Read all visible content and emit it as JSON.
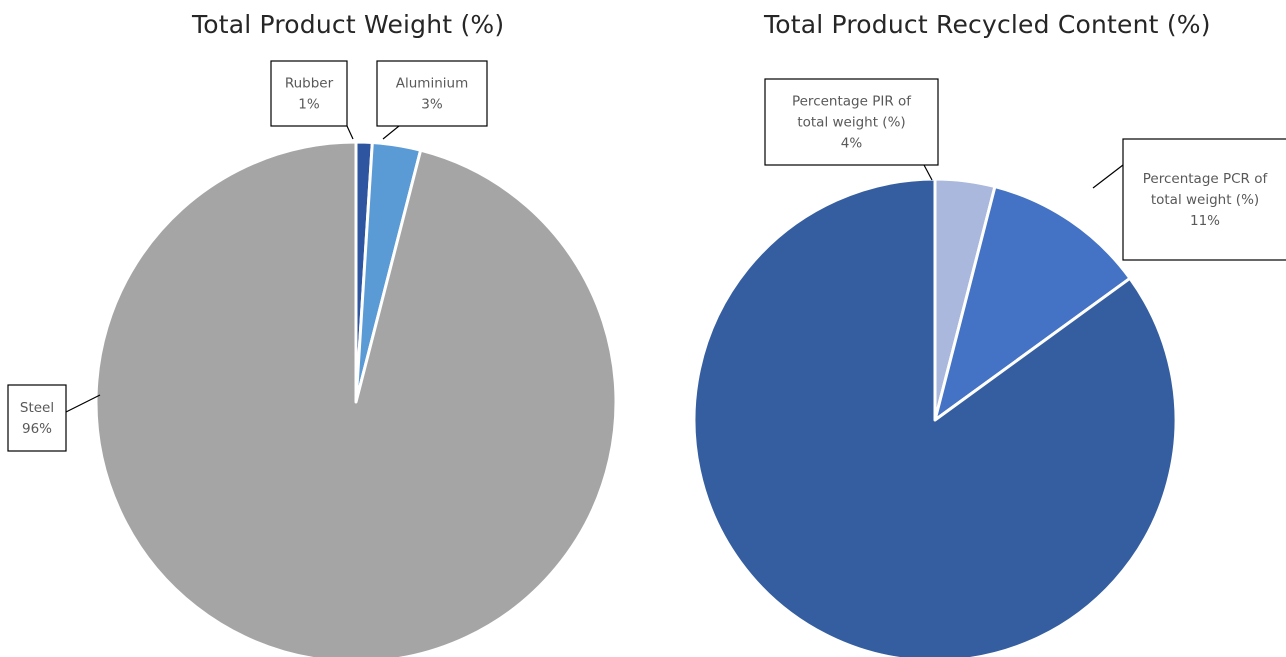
{
  "chart_data": [
    {
      "type": "pie",
      "title": "Total Product Weight (%)",
      "slices": [
        {
          "label": "Rubber",
          "value": 1,
          "value_label": "1%",
          "color": "#2e55a0"
        },
        {
          "label": "Aluminium",
          "value": 3,
          "value_label": "3%",
          "color": "#5b9bd5"
        },
        {
          "label": "Steel",
          "value": 96,
          "value_label": "96%",
          "color": "#a5a5a5"
        }
      ]
    },
    {
      "type": "pie",
      "title": "Total Product Recycled Content (%)",
      "slices": [
        {
          "label": "Percentage PIR of total weight (%)",
          "value": 4,
          "value_label": "4%",
          "color": "#a9b8dc"
        },
        {
          "label": "Percentage PCR of total weight (%)",
          "value": 11,
          "value_label": "11%",
          "color": "#4472c4"
        },
        {
          "label": "",
          "value": 85,
          "value_label": "",
          "color": "#355ea0"
        }
      ]
    }
  ]
}
